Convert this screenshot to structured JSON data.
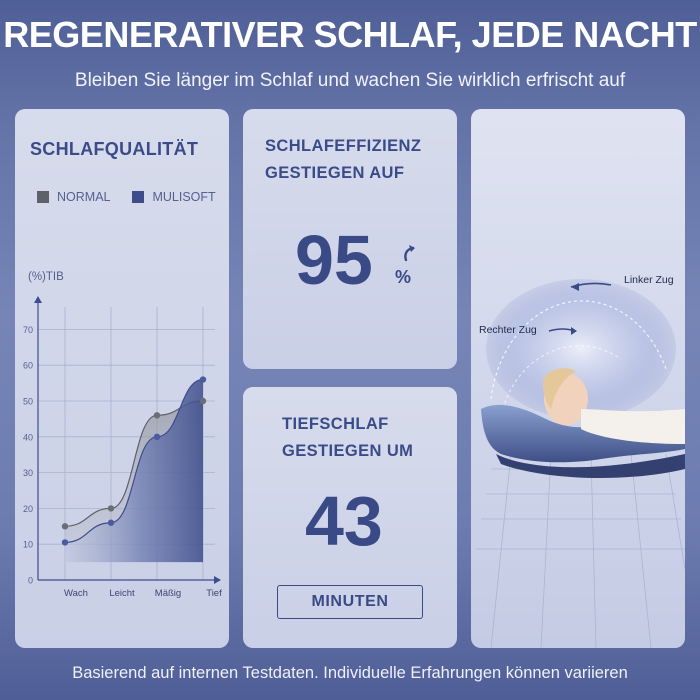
{
  "header": {
    "title": "REGENERATIVER SCHLAF, JEDE NACHT",
    "subtitle": "Bleiben Sie länger im Schlaf und wachen Sie wirklich erfrischt auf"
  },
  "quality_panel": {
    "title": "SCHLAFQUALITÄT",
    "legend": [
      {
        "label": "NORMAL",
        "color": "#5d6169"
      },
      {
        "label": "MULISOFT",
        "color": "#3d4d8c"
      }
    ]
  },
  "chart_data": {
    "type": "area",
    "title": "",
    "ylabel": "(%)TIB",
    "xlabel": "",
    "categories": [
      "Wach",
      "Leicht",
      "Mäßig",
      "Tief"
    ],
    "y_ticks": [
      0,
      10,
      20,
      30,
      40,
      50,
      60,
      70
    ],
    "ylim": [
      0,
      75
    ],
    "grid": true,
    "series": [
      {
        "name": "NORMAL",
        "values": [
          15,
          20,
          46,
          50
        ],
        "color": "#7b7f88"
      },
      {
        "name": "MULISOFT",
        "values": [
          10.5,
          16,
          40,
          56
        ],
        "color": "#3d4d8c"
      }
    ]
  },
  "efficiency_panel": {
    "title_line1": "SCHLAFEFFIZIENZ",
    "title_line2": "GESTIEGEN AUF",
    "value": "95",
    "unit": "%"
  },
  "deep_panel": {
    "title_line1": "TIEFSCHLAF",
    "title_line2": "GESTIEGEN UM",
    "value": "43",
    "unit": "MINUTEN"
  },
  "image_panel": {
    "label_left": "Linker Zug",
    "label_right": "Rechter Zug"
  },
  "footer": {
    "note": "Basierend auf internen Testdaten. Individuelle Erfahrungen können variieren"
  }
}
